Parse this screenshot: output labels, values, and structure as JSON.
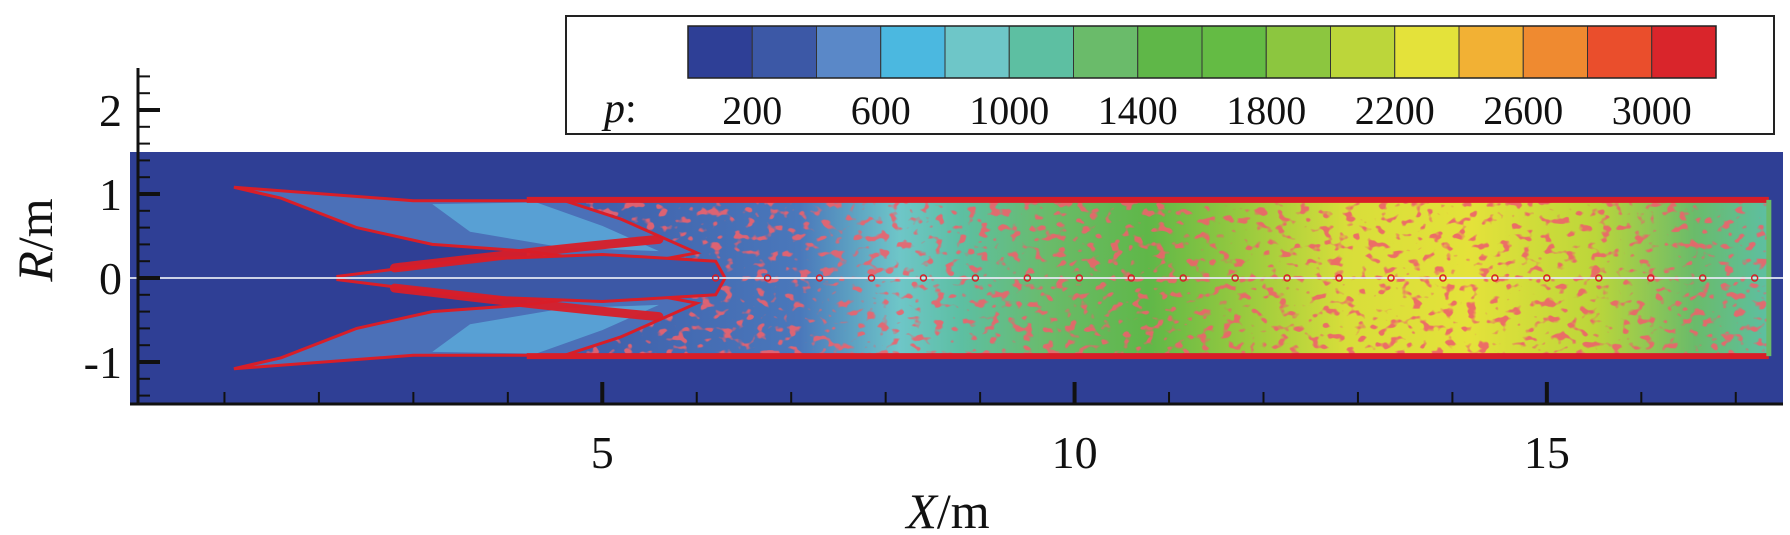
{
  "chart_data": {
    "type": "heatmap",
    "title": "",
    "xlabel": {
      "var": "X",
      "unit": "/m"
    },
    "ylabel": {
      "var": "R",
      "unit": "/m"
    },
    "xlim": [
      0,
      17.5
    ],
    "ylim": [
      -1.5,
      2.5
    ],
    "x_ticks": [
      {
        "value": 5,
        "label": "5"
      },
      {
        "value": 10,
        "label": "10"
      },
      {
        "value": 15,
        "label": "15"
      }
    ],
    "y_ticks": [
      {
        "value": 2,
        "label": "2"
      },
      {
        "value": 1,
        "label": "1"
      },
      {
        "value": 0,
        "label": "0"
      },
      {
        "value": -1,
        "label": "-1"
      }
    ],
    "field_extent": {
      "x": [
        0,
        17.5
      ],
      "r": [
        -1.5,
        1.5
      ]
    },
    "duct_radius": 0.93,
    "colorbar": {
      "variable": "p",
      "separator": ":",
      "range": [
        0,
        3200
      ],
      "levels": [
        0,
        200,
        400,
        600,
        800,
        1000,
        1200,
        1400,
        1600,
        1800,
        2000,
        2200,
        2400,
        2600,
        2800,
        3000,
        3200
      ],
      "colors": [
        "#2e3f96",
        "#3c58a6",
        "#5a88c8",
        "#4bb8e0",
        "#6ec6c8",
        "#5dbfa2",
        "#6abb6a",
        "#5fb748",
        "#64bb44",
        "#8cc63f",
        "#bcd63a",
        "#e4e23a",
        "#f2b134",
        "#ef8a30",
        "#ea4e2c",
        "#d9252b"
      ],
      "tick_labels": [
        {
          "value": 200,
          "label": "200"
        },
        {
          "value": 600,
          "label": "600"
        },
        {
          "value": 1000,
          "label": "1000"
        },
        {
          "value": 1400,
          "label": "1400"
        },
        {
          "value": 1800,
          "label": "1800"
        },
        {
          "value": 2200,
          "label": "2200"
        },
        {
          "value": 2600,
          "label": "2600"
        },
        {
          "value": 3000,
          "label": "3000"
        }
      ]
    },
    "background_color": "#2f3f95",
    "wall_color": "#d81e28"
  }
}
